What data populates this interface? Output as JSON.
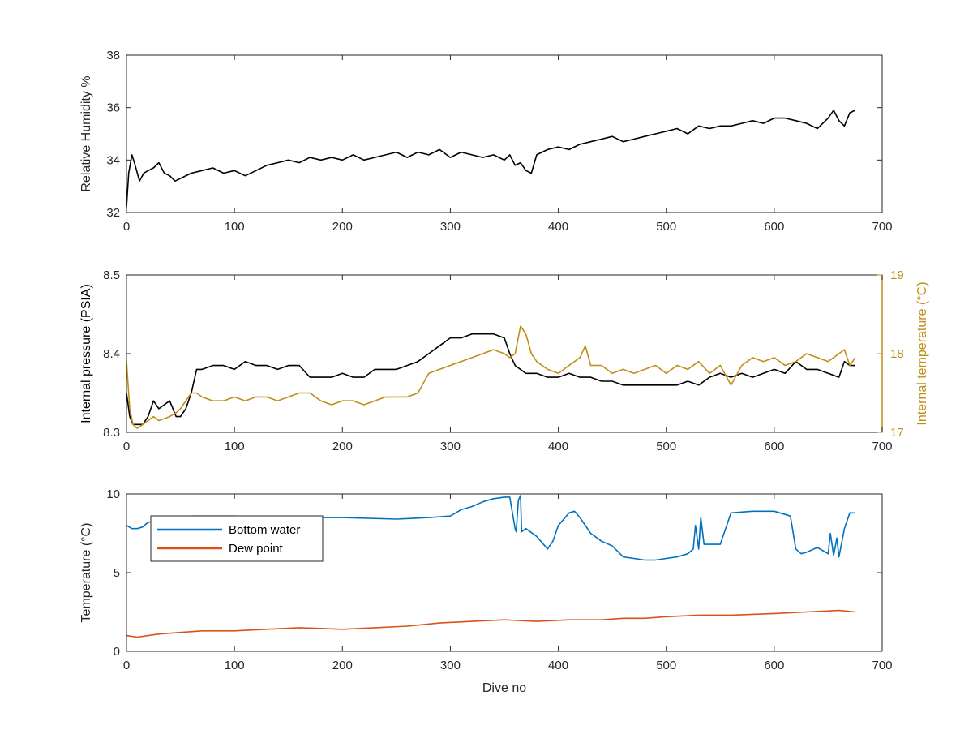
{
  "chart_data": [
    {
      "type": "line",
      "id": "humidity",
      "xlabel": "",
      "ylabel": "Relative Humidity %",
      "xlim": [
        0,
        700
      ],
      "ylim": [
        32,
        38
      ],
      "xticks": [
        0,
        100,
        200,
        300,
        400,
        500,
        600,
        700
      ],
      "yticks": [
        32,
        34,
        36,
        38
      ],
      "grid": false,
      "series": [
        {
          "color": "#000000",
          "x": [
            0,
            2,
            5,
            8,
            12,
            16,
            20,
            25,
            30,
            35,
            40,
            45,
            50,
            60,
            70,
            80,
            90,
            100,
            110,
            120,
            130,
            140,
            150,
            160,
            170,
            180,
            190,
            200,
            210,
            220,
            230,
            240,
            250,
            260,
            270,
            280,
            290,
            300,
            310,
            320,
            330,
            340,
            350,
            355,
            360,
            365,
            370,
            375,
            380,
            390,
            400,
            410,
            420,
            430,
            440,
            450,
            460,
            470,
            480,
            490,
            500,
            510,
            520,
            530,
            540,
            550,
            560,
            570,
            580,
            590,
            600,
            610,
            620,
            630,
            640,
            650,
            655,
            660,
            665,
            670,
            675
          ],
          "y": [
            32.2,
            33.5,
            34.2,
            33.8,
            33.2,
            33.5,
            33.6,
            33.7,
            33.9,
            33.5,
            33.4,
            33.2,
            33.3,
            33.5,
            33.6,
            33.7,
            33.5,
            33.6,
            33.4,
            33.6,
            33.8,
            33.9,
            34.0,
            33.9,
            34.1,
            34.0,
            34.1,
            34.0,
            34.2,
            34.0,
            34.1,
            34.2,
            34.3,
            34.1,
            34.3,
            34.2,
            34.4,
            34.1,
            34.3,
            34.2,
            34.1,
            34.2,
            34.0,
            34.2,
            33.8,
            33.9,
            33.6,
            33.5,
            34.2,
            34.4,
            34.5,
            34.4,
            34.6,
            34.7,
            34.8,
            34.9,
            34.7,
            34.8,
            34.9,
            35.0,
            35.1,
            35.2,
            35.0,
            35.3,
            35.2,
            35.3,
            35.3,
            35.4,
            35.5,
            35.4,
            35.6,
            35.6,
            35.5,
            35.4,
            35.2,
            35.6,
            35.9,
            35.5,
            35.3,
            35.8,
            35.9
          ]
        }
      ]
    },
    {
      "type": "line",
      "id": "pressure-temperature",
      "xlabel": "",
      "ylabel": "Internal pressure (PSIA)",
      "ylabel_right": "Internal temperature (°C)",
      "xlim": [
        0,
        700
      ],
      "ylim": [
        8.3,
        8.5
      ],
      "ylim_right": [
        17,
        19
      ],
      "xticks": [
        0,
        100,
        200,
        300,
        400,
        500,
        600,
        700
      ],
      "yticks": [
        8.3,
        8.4,
        8.5
      ],
      "yticks_right": [
        17,
        18,
        19
      ],
      "grid": false,
      "series": [
        {
          "axis": "left",
          "color": "#000000",
          "x": [
            0,
            3,
            6,
            10,
            15,
            20,
            25,
            30,
            40,
            46,
            50,
            55,
            60,
            65,
            70,
            80,
            90,
            100,
            110,
            120,
            130,
            140,
            150,
            160,
            170,
            180,
            190,
            200,
            210,
            220,
            230,
            240,
            250,
            260,
            270,
            280,
            290,
            300,
            310,
            320,
            330,
            340,
            350,
            355,
            360,
            370,
            380,
            390,
            400,
            410,
            420,
            430,
            440,
            450,
            460,
            470,
            480,
            490,
            500,
            510,
            520,
            530,
            540,
            550,
            560,
            570,
            580,
            590,
            600,
            610,
            620,
            630,
            640,
            650,
            660,
            665,
            670,
            675
          ],
          "y": [
            8.35,
            8.32,
            8.31,
            8.31,
            8.31,
            8.32,
            8.34,
            8.33,
            8.34,
            8.32,
            8.32,
            8.33,
            8.35,
            8.38,
            8.38,
            8.385,
            8.385,
            8.38,
            8.39,
            8.385,
            8.385,
            8.38,
            8.385,
            8.385,
            8.37,
            8.37,
            8.37,
            8.375,
            8.37,
            8.37,
            8.38,
            8.38,
            8.38,
            8.385,
            8.39,
            8.4,
            8.41,
            8.42,
            8.42,
            8.425,
            8.425,
            8.425,
            8.42,
            8.4,
            8.385,
            8.375,
            8.375,
            8.37,
            8.37,
            8.375,
            8.37,
            8.37,
            8.365,
            8.365,
            8.36,
            8.36,
            8.36,
            8.36,
            8.36,
            8.36,
            8.365,
            8.36,
            8.37,
            8.375,
            8.37,
            8.375,
            8.37,
            8.375,
            8.38,
            8.375,
            8.39,
            8.38,
            8.38,
            8.375,
            8.37,
            8.39,
            8.385,
            8.385
          ]
        },
        {
          "axis": "right",
          "color": "#c08e16",
          "x": [
            0,
            3,
            6,
            10,
            15,
            20,
            25,
            30,
            40,
            46,
            50,
            55,
            60,
            65,
            70,
            80,
            90,
            100,
            110,
            120,
            130,
            140,
            150,
            160,
            170,
            180,
            190,
            200,
            210,
            220,
            230,
            240,
            250,
            260,
            270,
            280,
            290,
            300,
            310,
            320,
            330,
            340,
            350,
            355,
            360,
            365,
            370,
            375,
            380,
            390,
            400,
            410,
            420,
            425,
            430,
            440,
            450,
            460,
            470,
            480,
            490,
            500,
            510,
            520,
            530,
            540,
            550,
            560,
            570,
            580,
            590,
            600,
            610,
            620,
            630,
            640,
            650,
            660,
            665,
            670,
            675
          ],
          "y": [
            17.9,
            17.3,
            17.1,
            17.05,
            17.1,
            17.15,
            17.2,
            17.15,
            17.2,
            17.25,
            17.3,
            17.4,
            17.5,
            17.5,
            17.45,
            17.4,
            17.4,
            17.45,
            17.4,
            17.45,
            17.45,
            17.4,
            17.45,
            17.5,
            17.5,
            17.4,
            17.35,
            17.4,
            17.4,
            17.35,
            17.4,
            17.45,
            17.45,
            17.45,
            17.5,
            17.75,
            17.8,
            17.85,
            17.9,
            17.95,
            18.0,
            18.05,
            18.0,
            17.95,
            18.0,
            18.35,
            18.25,
            18.0,
            17.9,
            17.8,
            17.75,
            17.85,
            17.95,
            18.1,
            17.85,
            17.85,
            17.75,
            17.8,
            17.75,
            17.8,
            17.85,
            17.75,
            17.85,
            17.8,
            17.9,
            17.75,
            17.85,
            17.6,
            17.85,
            17.95,
            17.9,
            17.95,
            17.85,
            17.9,
            18.0,
            17.95,
            17.9,
            18.0,
            18.05,
            17.85,
            17.95
          ]
        }
      ]
    },
    {
      "type": "line",
      "id": "temperature",
      "xlabel": "Dive no",
      "ylabel": "Temperature (°C)",
      "xlim": [
        0,
        700
      ],
      "ylim": [
        0,
        10
      ],
      "xticks": [
        0,
        100,
        200,
        300,
        400,
        500,
        600,
        700
      ],
      "yticks": [
        0,
        5,
        10
      ],
      "grid": false,
      "legend": "top-left",
      "series": [
        {
          "name": "Bottom water",
          "color": "#0072bd",
          "x": [
            0,
            5,
            10,
            15,
            20,
            30,
            40,
            50,
            60,
            80,
            100,
            150,
            200,
            250,
            280,
            300,
            310,
            320,
            330,
            340,
            350,
            355,
            360,
            361,
            363,
            365,
            366,
            370,
            380,
            390,
            395,
            400,
            410,
            415,
            420,
            430,
            440,
            450,
            460,
            470,
            480,
            490,
            500,
            510,
            520,
            525,
            527,
            530,
            532,
            535,
            540,
            550,
            560,
            580,
            600,
            610,
            615,
            620,
            625,
            630,
            640,
            650,
            652,
            655,
            658,
            660,
            665,
            670,
            675
          ],
          "y": [
            8.0,
            7.8,
            7.8,
            7.9,
            8.2,
            8.3,
            8.5,
            8.5,
            8.6,
            8.6,
            8.6,
            8.5,
            8.5,
            8.4,
            8.5,
            8.6,
            9.0,
            9.2,
            9.5,
            9.7,
            9.8,
            9.8,
            7.8,
            7.6,
            9.6,
            9.9,
            7.6,
            7.8,
            7.3,
            6.5,
            7.0,
            8.0,
            8.8,
            8.9,
            8.5,
            7.5,
            7.0,
            6.7,
            6.0,
            5.9,
            5.8,
            5.8,
            5.9,
            6.0,
            6.2,
            6.5,
            8.0,
            6.5,
            8.5,
            6.8,
            6.8,
            6.8,
            8.8,
            8.9,
            8.9,
            8.7,
            8.6,
            6.5,
            6.2,
            6.3,
            6.6,
            6.2,
            7.5,
            6.1,
            7.2,
            6.0,
            7.8,
            8.8,
            8.8
          ]
        },
        {
          "name": "Dew point",
          "color": "#d95319",
          "x": [
            0,
            10,
            20,
            30,
            50,
            70,
            100,
            130,
            160,
            200,
            230,
            260,
            290,
            320,
            350,
            380,
            410,
            440,
            460,
            480,
            500,
            530,
            560,
            600,
            630,
            660,
            675
          ],
          "y": [
            1.0,
            0.9,
            1.0,
            1.1,
            1.2,
            1.3,
            1.3,
            1.4,
            1.5,
            1.4,
            1.5,
            1.6,
            1.8,
            1.9,
            2.0,
            1.9,
            2.0,
            2.0,
            2.1,
            2.1,
            2.2,
            2.3,
            2.3,
            2.4,
            2.5,
            2.6,
            2.5
          ]
        }
      ]
    }
  ]
}
